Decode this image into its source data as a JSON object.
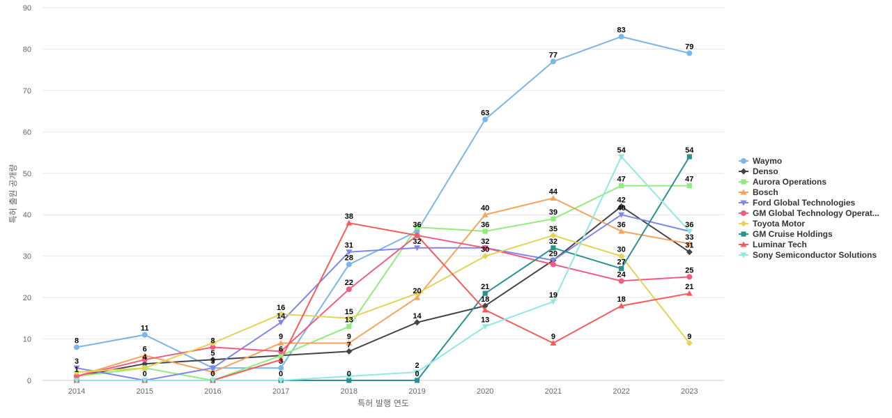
{
  "chart_data": {
    "type": "line",
    "title": "",
    "xlabel": "특허 발행 연도",
    "ylabel": "특허 출원 공개량",
    "ylim": [
      0,
      90
    ],
    "yticks": [
      0,
      10,
      20,
      30,
      40,
      50,
      60,
      70,
      80,
      90
    ],
    "grid": true,
    "legend_position": "right",
    "x": [
      "2014",
      "2015",
      "2016",
      "2017",
      "2018",
      "2019",
      "2020",
      "2021",
      "2022",
      "2023"
    ],
    "series": [
      {
        "name": "Waymo",
        "color": "#7cb5ec",
        "marker": "circle",
        "values": [
          8,
          11,
          3,
          3,
          28,
          36,
          63,
          77,
          83,
          79
        ]
      },
      {
        "name": "Denso",
        "color": "#434348",
        "marker": "diamond",
        "values": [
          1,
          4,
          5,
          6,
          7,
          14,
          18,
          29,
          42,
          31
        ]
      },
      {
        "name": "Aurora Operations",
        "color": "#90ed7d",
        "marker": "square",
        "values": [
          1,
          3,
          0,
          6,
          13,
          37,
          36,
          39,
          47,
          47
        ]
      },
      {
        "name": "Bosch",
        "color": "#f7a35c",
        "marker": "triangle",
        "values": [
          1,
          6,
          2,
          9,
          9,
          20,
          40,
          44,
          36,
          33
        ]
      },
      {
        "name": "Ford Global Technologies",
        "color": "#8085e9",
        "marker": "triangle-down",
        "values": [
          3,
          0,
          3,
          14,
          31,
          32,
          32,
          29,
          40,
          36
        ]
      },
      {
        "name": "GM Global Technology Operat...",
        "color": "#f15c80",
        "marker": "circle",
        "values": [
          1,
          5,
          8,
          7,
          22,
          35,
          32,
          28,
          24,
          25
        ]
      },
      {
        "name": "Toyota Motor",
        "color": "#e4d354",
        "marker": "diamond",
        "values": [
          2,
          3,
          9,
          16,
          15,
          21,
          30,
          35,
          30,
          9
        ]
      },
      {
        "name": "GM Cruise Holdings",
        "color": "#2b908f",
        "marker": "square",
        "values": [
          0,
          0,
          0,
          0,
          0,
          0,
          21,
          32,
          27,
          54
        ]
      },
      {
        "name": "Luminar Tech",
        "color": "#f45b5b",
        "marker": "triangle",
        "values": [
          0,
          0,
          0,
          5,
          38,
          35,
          17,
          9,
          18,
          21
        ]
      },
      {
        "name": "Sony Semiconductor Solutions",
        "color": "#91e8e1",
        "marker": "triangle-down",
        "values": [
          0,
          0,
          0,
          0,
          1,
          2,
          13,
          19,
          54,
          36
        ]
      }
    ],
    "data_labels": [
      {
        "x": "2014",
        "value": 8,
        "text": "8"
      },
      {
        "x": "2014",
        "value": 3,
        "text": "3"
      },
      {
        "x": "2014",
        "value": 1,
        "text": "1"
      },
      {
        "x": "2015",
        "value": 11,
        "text": "11"
      },
      {
        "x": "2015",
        "value": 6,
        "text": "6"
      },
      {
        "x": "2015",
        "value": 4,
        "text": "4"
      },
      {
        "x": "2015",
        "value": 0,
        "text": "0"
      },
      {
        "x": "2016",
        "value": 8,
        "text": "8"
      },
      {
        "x": "2016",
        "value": 5,
        "text": "5"
      },
      {
        "x": "2016",
        "value": 3,
        "text": "3"
      },
      {
        "x": "2016",
        "value": 0,
        "text": "0"
      },
      {
        "x": "2017",
        "value": 16,
        "text": "16"
      },
      {
        "x": "2017",
        "value": 14,
        "text": "14"
      },
      {
        "x": "2017",
        "value": 9,
        "text": "9"
      },
      {
        "x": "2017",
        "value": 6,
        "text": "6"
      },
      {
        "x": "2017",
        "value": 3,
        "text": "3"
      },
      {
        "x": "2017",
        "value": 0,
        "text": "0"
      },
      {
        "x": "2018",
        "value": 38,
        "text": "38"
      },
      {
        "x": "2018",
        "value": 31,
        "text": "31"
      },
      {
        "x": "2018",
        "value": 28,
        "text": "28"
      },
      {
        "x": "2018",
        "value": 22,
        "text": "22"
      },
      {
        "x": "2018",
        "value": 15,
        "text": "15"
      },
      {
        "x": "2018",
        "value": 13,
        "text": "13"
      },
      {
        "x": "2018",
        "value": 9,
        "text": "9"
      },
      {
        "x": "2018",
        "value": 7,
        "text": "7"
      },
      {
        "x": "2018",
        "value": 0,
        "text": "0"
      },
      {
        "x": "2019",
        "value": 36,
        "text": "36"
      },
      {
        "x": "2019",
        "value": 32,
        "text": "32"
      },
      {
        "x": "2019",
        "value": 20,
        "text": "20"
      },
      {
        "x": "2019",
        "value": 14,
        "text": "14"
      },
      {
        "x": "2019",
        "value": 2,
        "text": "2"
      },
      {
        "x": "2019",
        "value": 0,
        "text": "0"
      },
      {
        "x": "2020",
        "value": 63,
        "text": "63"
      },
      {
        "x": "2020",
        "value": 40,
        "text": "40"
      },
      {
        "x": "2020",
        "value": 36,
        "text": "36"
      },
      {
        "x": "2020",
        "value": 32,
        "text": "32"
      },
      {
        "x": "2020",
        "value": 30,
        "text": "30"
      },
      {
        "x": "2020",
        "value": 21,
        "text": "21"
      },
      {
        "x": "2020",
        "value": 18,
        "text": "18"
      },
      {
        "x": "2020",
        "value": 13,
        "text": "13"
      },
      {
        "x": "2021",
        "value": 77,
        "text": "77"
      },
      {
        "x": "2021",
        "value": 44,
        "text": "44"
      },
      {
        "x": "2021",
        "value": 39,
        "text": "39"
      },
      {
        "x": "2021",
        "value": 35,
        "text": "35"
      },
      {
        "x": "2021",
        "value": 32,
        "text": "32"
      },
      {
        "x": "2021",
        "value": 29,
        "text": "29"
      },
      {
        "x": "2021",
        "value": 19,
        "text": "19"
      },
      {
        "x": "2021",
        "value": 9,
        "text": "9"
      },
      {
        "x": "2022",
        "value": 83,
        "text": "83"
      },
      {
        "x": "2022",
        "value": 54,
        "text": "54"
      },
      {
        "x": "2022",
        "value": 47,
        "text": "47"
      },
      {
        "x": "2022",
        "value": 42,
        "text": "42"
      },
      {
        "x": "2022",
        "value": 40,
        "text": "40"
      },
      {
        "x": "2022",
        "value": 36,
        "text": "36"
      },
      {
        "x": "2022",
        "value": 30,
        "text": "30"
      },
      {
        "x": "2022",
        "value": 27,
        "text": "27"
      },
      {
        "x": "2022",
        "value": 24,
        "text": "24"
      },
      {
        "x": "2022",
        "value": 18,
        "text": "18"
      },
      {
        "x": "2023",
        "value": 79,
        "text": "79"
      },
      {
        "x": "2023",
        "value": 54,
        "text": "54"
      },
      {
        "x": "2023",
        "value": 47,
        "text": "47"
      },
      {
        "x": "2023",
        "value": 36,
        "text": "36"
      },
      {
        "x": "2023",
        "value": 33,
        "text": "33"
      },
      {
        "x": "2023",
        "value": 31,
        "text": "31"
      },
      {
        "x": "2023",
        "value": 25,
        "text": "25"
      },
      {
        "x": "2023",
        "value": 21,
        "text": "21"
      },
      {
        "x": "2023",
        "value": 9,
        "text": "9"
      }
    ]
  }
}
